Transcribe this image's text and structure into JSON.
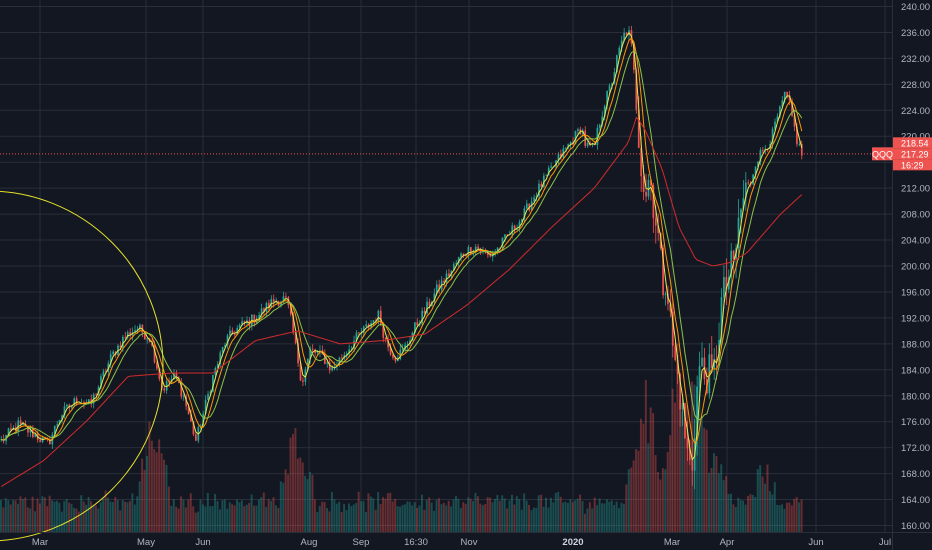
{
  "chart_data": {
    "type": "candlestick",
    "symbol": "QQQ",
    "price_axis": {
      "ticks": [
        "240.00",
        "236.00",
        "232.00",
        "228.00",
        "224.00",
        "220.00",
        "216.00",
        "212.00",
        "208.00",
        "204.00",
        "200.00",
        "196.00",
        "192.00",
        "188.00",
        "184.00",
        "180.00",
        "176.00",
        "172.00",
        "168.00",
        "164.00",
        "160.00"
      ],
      "ylim": [
        159,
        241
      ]
    },
    "time_axis": {
      "labels": [
        {
          "text": "Mar",
          "bold": false
        },
        {
          "text": "May",
          "bold": false
        },
        {
          "text": "Jun",
          "bold": false
        },
        {
          "text": "Aug",
          "bold": false
        },
        {
          "text": "Sep",
          "bold": false
        },
        {
          "text": "16:30",
          "bold": false
        },
        {
          "text": "Nov",
          "bold": false
        },
        {
          "text": "2020",
          "bold": true
        },
        {
          "text": "Mar",
          "bold": false
        },
        {
          "text": "Apr",
          "bold": false
        },
        {
          "text": "Jun",
          "bold": false
        },
        {
          "text": "Jul",
          "bold": false
        }
      ]
    },
    "price_path_anchors": [
      [
        0,
        173
      ],
      [
        0.02,
        175.5
      ],
      [
        0.04,
        174
      ],
      [
        0.055,
        172.5
      ],
      [
        0.07,
        177
      ],
      [
        0.09,
        179.5
      ],
      [
        0.105,
        178.5
      ],
      [
        0.13,
        186
      ],
      [
        0.145,
        189
      ],
      [
        0.16,
        190.5
      ],
      [
        0.175,
        189
      ],
      [
        0.185,
        184
      ],
      [
        0.19,
        181
      ],
      [
        0.205,
        183
      ],
      [
        0.215,
        180
      ],
      [
        0.23,
        173
      ],
      [
        0.25,
        183
      ],
      [
        0.265,
        188.5
      ],
      [
        0.28,
        190.5
      ],
      [
        0.3,
        192
      ],
      [
        0.32,
        194.5
      ],
      [
        0.335,
        195
      ],
      [
        0.34,
        193
      ],
      [
        0.355,
        182
      ],
      [
        0.365,
        187
      ],
      [
        0.38,
        186
      ],
      [
        0.39,
        184
      ],
      [
        0.405,
        186.5
      ],
      [
        0.42,
        189
      ],
      [
        0.435,
        191
      ],
      [
        0.445,
        192.5
      ],
      [
        0.455,
        188
      ],
      [
        0.465,
        186
      ],
      [
        0.475,
        187
      ],
      [
        0.49,
        191
      ],
      [
        0.5,
        193
      ],
      [
        0.515,
        196.5
      ],
      [
        0.53,
        199
      ],
      [
        0.545,
        202
      ],
      [
        0.56,
        203
      ],
      [
        0.575,
        201.5
      ],
      [
        0.585,
        202.5
      ],
      [
        0.6,
        205
      ],
      [
        0.615,
        207.5
      ],
      [
        0.63,
        211
      ],
      [
        0.645,
        214
      ],
      [
        0.66,
        217
      ],
      [
        0.675,
        219.5
      ],
      [
        0.685,
        221.5
      ],
      [
        0.69,
        218.5
      ],
      [
        0.7,
        218
      ],
      [
        0.705,
        221.5
      ],
      [
        0.712,
        225
      ],
      [
        0.72,
        228
      ],
      [
        0.727,
        232
      ],
      [
        0.735,
        235.5
      ],
      [
        0.74,
        236.5
      ],
      [
        0.745,
        233
      ],
      [
        0.75,
        224
      ],
      [
        0.755,
        217
      ],
      [
        0.76,
        211
      ],
      [
        0.765,
        214
      ],
      [
        0.77,
        210
      ],
      [
        0.775,
        205
      ],
      [
        0.778,
        201
      ],
      [
        0.78,
        197
      ],
      [
        0.785,
        199
      ],
      [
        0.79,
        191
      ],
      [
        0.795,
        185
      ],
      [
        0.8,
        182
      ],
      [
        0.805,
        176
      ],
      [
        0.81,
        171
      ],
      [
        0.815,
        168
      ],
      [
        0.82,
        179
      ],
      [
        0.825,
        185
      ],
      [
        0.83,
        183
      ],
      [
        0.835,
        183.5
      ],
      [
        0.84,
        182
      ],
      [
        0.845,
        187.5
      ],
      [
        0.85,
        194
      ],
      [
        0.855,
        196.5
      ],
      [
        0.86,
        199
      ],
      [
        0.865,
        200
      ],
      [
        0.87,
        206
      ],
      [
        0.875,
        210
      ],
      [
        0.88,
        212
      ],
      [
        0.885,
        213
      ],
      [
        0.89,
        216
      ],
      [
        0.9,
        218
      ],
      [
        0.91,
        220
      ],
      [
        0.915,
        222.5
      ],
      [
        0.92,
        224
      ],
      [
        0.925,
        226.5
      ],
      [
        0.93,
        225
      ],
      [
        0.935,
        222
      ],
      [
        0.94,
        219
      ],
      [
        0.945,
        217.3
      ],
      [
        1,
        217.3
      ]
    ],
    "ma_red_anchors": [
      [
        0,
        166
      ],
      [
        0.05,
        170
      ],
      [
        0.1,
        176
      ],
      [
        0.15,
        183
      ],
      [
        0.2,
        183.5
      ],
      [
        0.25,
        183.5
      ],
      [
        0.3,
        188.5
      ],
      [
        0.35,
        190
      ],
      [
        0.4,
        188
      ],
      [
        0.45,
        188.5
      ],
      [
        0.5,
        189.5
      ],
      [
        0.55,
        194
      ],
      [
        0.6,
        199.5
      ],
      [
        0.65,
        206
      ],
      [
        0.7,
        212
      ],
      [
        0.74,
        219
      ],
      [
        0.75,
        223
      ],
      [
        0.76,
        221
      ],
      [
        0.78,
        215
      ],
      [
        0.8,
        206
      ],
      [
        0.82,
        201
      ],
      [
        0.84,
        200
      ],
      [
        0.86,
        200.5
      ],
      [
        0.88,
        202
      ],
      [
        0.9,
        205
      ],
      [
        0.92,
        208
      ],
      [
        0.945,
        211
      ]
    ],
    "volume_levels": [
      {
        "x": 0.18,
        "v": 0.6
      },
      {
        "x": 0.35,
        "v": 0.6
      },
      {
        "x": 0.76,
        "v": 0.8
      },
      {
        "x": 0.8,
        "v": 1.0
      },
      {
        "x": 0.82,
        "v": 0.9
      },
      {
        "x": 0.84,
        "v": 0.5
      },
      {
        "x": 0.9,
        "v": 0.35
      }
    ],
    "current_price": 217.29,
    "price_badges": [
      {
        "text": "218.54",
        "price": 218.54
      },
      {
        "text": "217.29",
        "price": 217.29
      },
      {
        "text": "16:29",
        "price": 216.0
      }
    ],
    "colors": {
      "up": "#26a69a",
      "down": "#ef5350",
      "ma_red": "#d12b2b",
      "ma_orange": "#ff9800",
      "ma_green": "#8bc34a",
      "ma_yellow": "#e8e84d",
      "circle": "#e5e22a",
      "grid": "#2a2e39",
      "background": "#131722"
    }
  }
}
